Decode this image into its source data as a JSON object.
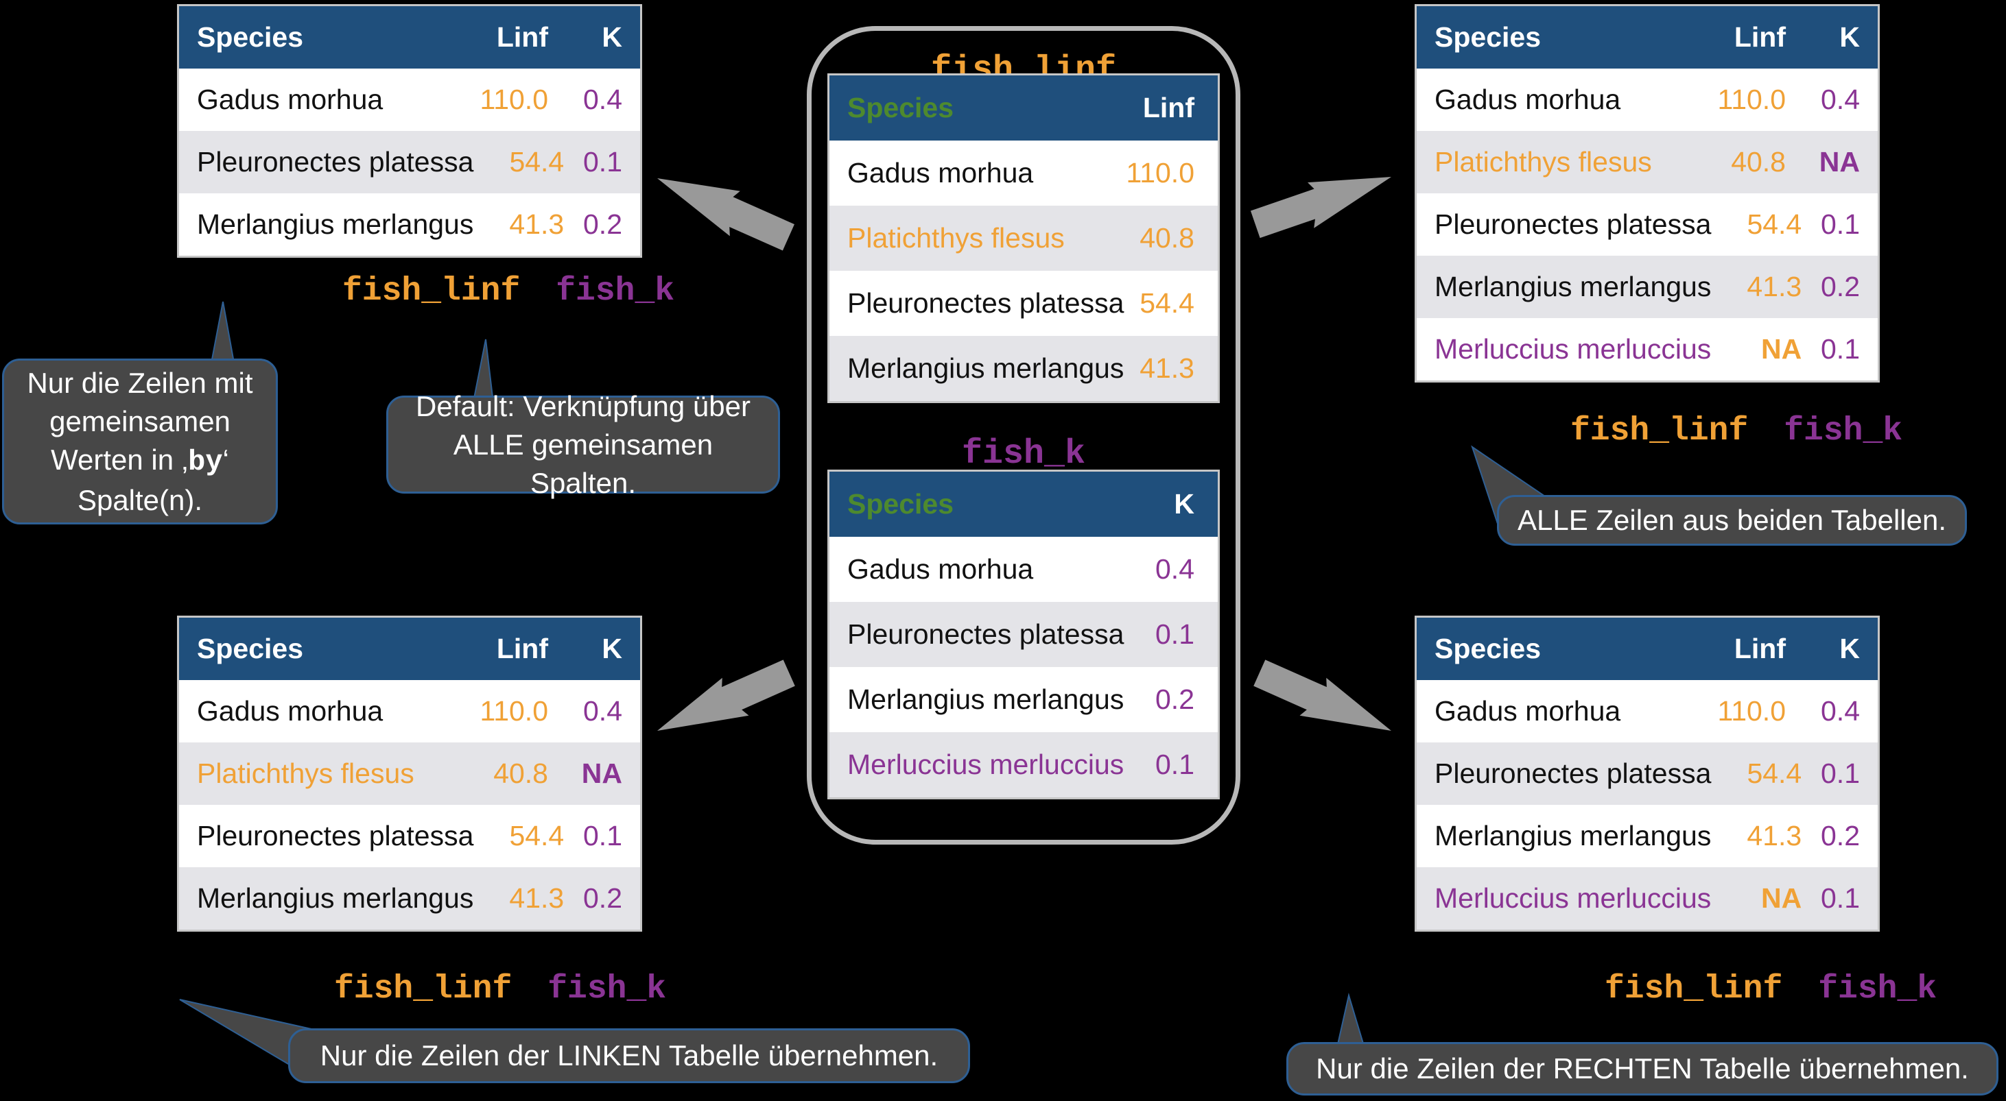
{
  "colors": {
    "background": "#000000",
    "header_bg": "#1F4F7C",
    "row_alt": "#E4E4E8",
    "orange": "#F0A136",
    "purple": "#8A3494",
    "green": "#4E8A2E",
    "bubble_bg": "#474747",
    "bubble_border": "#2E5F94",
    "arrow": "#999999",
    "phone_border": "#B8B8B8",
    "table_border": "#C6C6C6"
  },
  "labels": {
    "dataset_left": "fish_linf",
    "dataset_right": "fish_k"
  },
  "phone": {
    "linf_table": {
      "title": "fish_linf",
      "headers": [
        [
          "Species",
          "green"
        ],
        [
          "Linf",
          "white"
        ]
      ],
      "rows": [
        [
          [
            "Gadus morhua",
            "dark"
          ],
          [
            "110.0",
            "orange"
          ]
        ],
        [
          [
            "Platichthys flesus",
            "orange"
          ],
          [
            "40.8",
            "orange"
          ]
        ],
        [
          [
            "Pleuronectes platessa",
            "dark"
          ],
          [
            "54.4",
            "orange"
          ]
        ],
        [
          [
            "Merlangius merlangus",
            "dark"
          ],
          [
            "41.3",
            "orange"
          ]
        ]
      ]
    },
    "k_table": {
      "title": "fish_k",
      "headers": [
        [
          "Species",
          "green"
        ],
        [
          "K",
          "white"
        ]
      ],
      "rows": [
        [
          [
            "Gadus morhua",
            "dark"
          ],
          [
            "0.4",
            "purple"
          ]
        ],
        [
          [
            "Pleuronectes platessa",
            "dark"
          ],
          [
            "0.1",
            "purple"
          ]
        ],
        [
          [
            "Merlangius merlangus",
            "dark"
          ],
          [
            "0.2",
            "purple"
          ]
        ],
        [
          [
            "Merluccius merluccius",
            "purple"
          ],
          [
            "0.1",
            "purple"
          ]
        ]
      ]
    }
  },
  "side_tables": {
    "inner_join": {
      "headers": [
        [
          "Species",
          "white"
        ],
        [
          "Linf",
          "white"
        ],
        [
          "K",
          "white"
        ]
      ],
      "rows": [
        [
          [
            "Gadus morhua",
            "dark"
          ],
          [
            "110.0",
            "orange"
          ],
          [
            "0.4",
            "purple"
          ]
        ],
        [
          [
            "Pleuronectes platessa",
            "dark"
          ],
          [
            "54.4",
            "orange"
          ],
          [
            "0.1",
            "purple"
          ]
        ],
        [
          [
            "Merlangius merlangus",
            "dark"
          ],
          [
            "41.3",
            "orange"
          ],
          [
            "0.2",
            "purple"
          ]
        ]
      ]
    },
    "full_join": {
      "headers": [
        [
          "Species",
          "white"
        ],
        [
          "Linf",
          "white"
        ],
        [
          "K",
          "white"
        ]
      ],
      "rows": [
        [
          [
            "Gadus morhua",
            "dark"
          ],
          [
            "110.0",
            "orange"
          ],
          [
            "0.4",
            "purple"
          ]
        ],
        [
          [
            "Platichthys flesus",
            "orange"
          ],
          [
            "40.8",
            "orange"
          ],
          [
            "NA",
            "purple bold"
          ]
        ],
        [
          [
            "Pleuronectes platessa",
            "dark"
          ],
          [
            "54.4",
            "orange"
          ],
          [
            "0.1",
            "purple"
          ]
        ],
        [
          [
            "Merlangius merlangus",
            "dark"
          ],
          [
            "41.3",
            "orange"
          ],
          [
            "0.2",
            "purple"
          ]
        ],
        [
          [
            "Merluccius merluccius",
            "purple"
          ],
          [
            "NA",
            "orange bold"
          ],
          [
            "0.1",
            "purple"
          ]
        ]
      ]
    },
    "left_join": {
      "headers": [
        [
          "Species",
          "white"
        ],
        [
          "Linf",
          "white"
        ],
        [
          "K",
          "white"
        ]
      ],
      "rows": [
        [
          [
            "Gadus morhua",
            "dark"
          ],
          [
            "110.0",
            "orange"
          ],
          [
            "0.4",
            "purple"
          ]
        ],
        [
          [
            "Platichthys flesus",
            "orange"
          ],
          [
            "40.8",
            "orange"
          ],
          [
            "NA",
            "purple bold"
          ]
        ],
        [
          [
            "Pleuronectes platessa",
            "dark"
          ],
          [
            "54.4",
            "orange"
          ],
          [
            "0.1",
            "purple"
          ]
        ],
        [
          [
            "Merlangius merlangus",
            "dark"
          ],
          [
            "41.3",
            "orange"
          ],
          [
            "0.2",
            "purple"
          ]
        ]
      ]
    },
    "right_join": {
      "headers": [
        [
          "Species",
          "white"
        ],
        [
          "Linf",
          "white"
        ],
        [
          "K",
          "white"
        ]
      ],
      "rows": [
        [
          [
            "Gadus morhua",
            "dark"
          ],
          [
            "110.0",
            "orange"
          ],
          [
            "0.4",
            "purple"
          ]
        ],
        [
          [
            "Pleuronectes platessa",
            "dark"
          ],
          [
            "54.4",
            "orange"
          ],
          [
            "0.1",
            "purple"
          ]
        ],
        [
          [
            "Merlangius merlangus",
            "dark"
          ],
          [
            "41.3",
            "orange"
          ],
          [
            "0.2",
            "purple"
          ]
        ],
        [
          [
            "Merluccius merluccius",
            "purple"
          ],
          [
            "NA",
            "orange bold"
          ],
          [
            "0.1",
            "purple"
          ]
        ]
      ]
    }
  },
  "bubbles": {
    "by_note": {
      "text_before": "Nur die Zeilen mit gemeinsamen Werten in ‚",
      "code": "by",
      "text_after": "‘ Spalte(n)."
    },
    "default_note": {
      "text": "Default: Verknüpfung über ALLE gemeinsamen Spalten."
    },
    "full_note": {
      "text": "ALLE Zeilen aus beiden Tabellen."
    },
    "left_note": {
      "text": "Nur die Zeilen der LINKEN Tabelle übernehmen."
    },
    "right_note": {
      "text": "Nur die Zeilen der RECHTEN Tabelle übernehmen."
    }
  }
}
